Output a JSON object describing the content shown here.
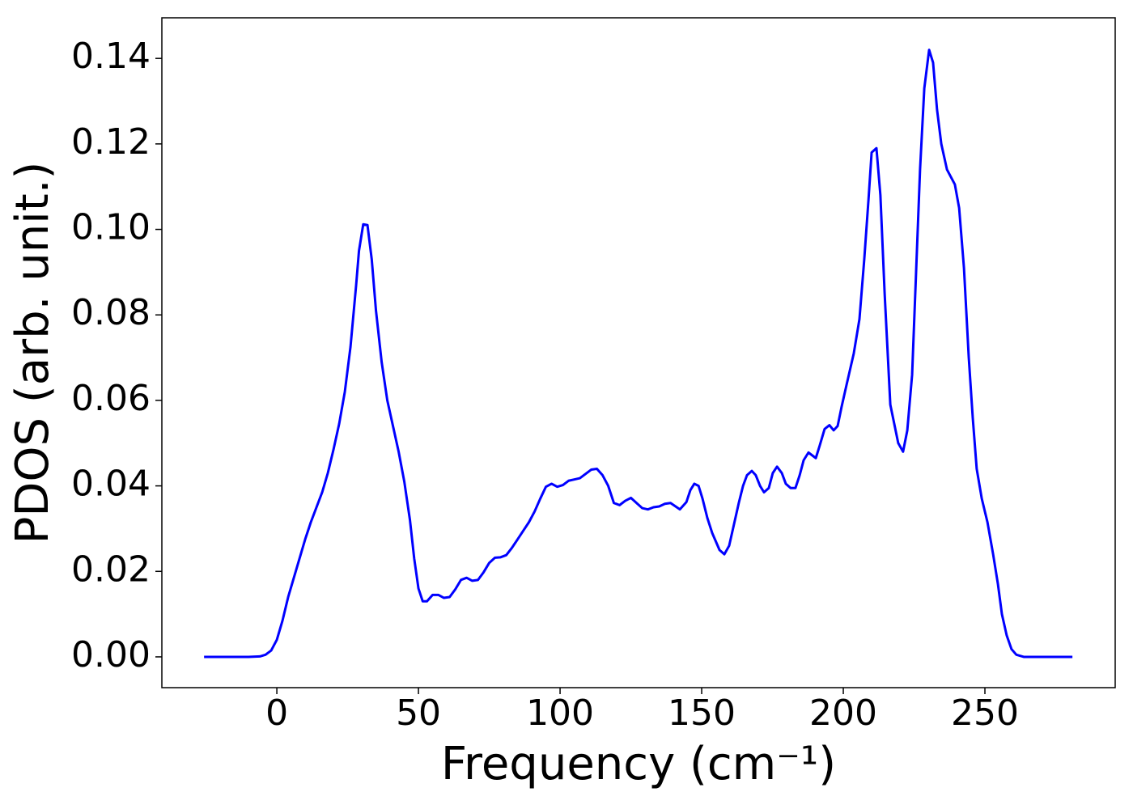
{
  "chart_data": {
    "type": "line",
    "xlabel": "Frequency (cm⁻¹)",
    "ylabel": "PDOS (arb. unit.)",
    "x": [
      -25.7,
      -20,
      -10,
      -6,
      -4,
      -2,
      0,
      2,
      4,
      6,
      8,
      10,
      12,
      14,
      16,
      18,
      20,
      22,
      24,
      26,
      28,
      29,
      30.5,
      32,
      33.5,
      35,
      37,
      39,
      41,
      43,
      45,
      47,
      48.5,
      50,
      51.5,
      53,
      55,
      57,
      59,
      61,
      63,
      65,
      67,
      69,
      71,
      73,
      75,
      77,
      79,
      81,
      83,
      85,
      87,
      89,
      91,
      93,
      95,
      97,
      99,
      101,
      103,
      105,
      107,
      109,
      111,
      113,
      115,
      117,
      119,
      121,
      123,
      125,
      127,
      129,
      131,
      133,
      135,
      137,
      139,
      142.3,
      144.6,
      146,
      147.4,
      148.9,
      150.3,
      152,
      153.7,
      156.3,
      158,
      159.7,
      161.4,
      163.1,
      164.6,
      166,
      167.7,
      169.1,
      170.6,
      172,
      173.7,
      175.1,
      176.6,
      178.3,
      179.7,
      181.4,
      183.1,
      184.6,
      186,
      187.7,
      190.3,
      191.7,
      193.4,
      195.1,
      196.6,
      198,
      199.4,
      201.1,
      203.7,
      205.7,
      207.4,
      208.9,
      210,
      211.7,
      213.1,
      214.6,
      216.6,
      219.4,
      221.1,
      222.6,
      224.3,
      225.7,
      227.1,
      228.6,
      230.3,
      231.7,
      233.1,
      234.6,
      236.6,
      239.4,
      240.9,
      242.6,
      244.3,
      245.7,
      247.1,
      248.9,
      250.9,
      252.9,
      254.6,
      256,
      257.7,
      259.4,
      261.1,
      263.7,
      280.9
    ],
    "series": [
      {
        "color": "#0000ff",
        "values": [
          0,
          0,
          0,
          0.0001,
          0.0005,
          0.0015,
          0.004,
          0.0085,
          0.014,
          0.0185,
          0.023,
          0.0275,
          0.0315,
          0.035,
          0.0385,
          0.043,
          0.0485,
          0.0545,
          0.062,
          0.0725,
          0.087,
          0.095,
          0.1012,
          0.101,
          0.093,
          0.081,
          0.069,
          0.06,
          0.054,
          0.048,
          0.041,
          0.032,
          0.023,
          0.016,
          0.013,
          0.013,
          0.0145,
          0.0145,
          0.0138,
          0.014,
          0.0158,
          0.018,
          0.0185,
          0.0178,
          0.018,
          0.0198,
          0.022,
          0.0232,
          0.0233,
          0.0238,
          0.0255,
          0.0275,
          0.0295,
          0.0315,
          0.034,
          0.037,
          0.0398,
          0.0405,
          0.0398,
          0.0402,
          0.0412,
          0.0415,
          0.0418,
          0.0428,
          0.0438,
          0.044,
          0.0425,
          0.04,
          0.036,
          0.0355,
          0.0365,
          0.0372,
          0.036,
          0.0348,
          0.0345,
          0.035,
          0.0352,
          0.0358,
          0.036,
          0.0345,
          0.0362,
          0.039,
          0.0405,
          0.04,
          0.037,
          0.0325,
          0.029,
          0.025,
          0.024,
          0.026,
          0.031,
          0.036,
          0.04,
          0.0425,
          0.0435,
          0.0425,
          0.04,
          0.0385,
          0.0395,
          0.043,
          0.0445,
          0.043,
          0.0405,
          0.0395,
          0.0395,
          0.0425,
          0.046,
          0.0478,
          0.0465,
          0.0495,
          0.0533,
          0.0542,
          0.053,
          0.054,
          0.0585,
          0.0635,
          0.071,
          0.079,
          0.093,
          0.107,
          0.118,
          0.119,
          0.108,
          0.085,
          0.059,
          0.05,
          0.048,
          0.053,
          0.066,
          0.09,
          0.114,
          0.133,
          0.142,
          0.139,
          0.128,
          0.12,
          0.114,
          0.1105,
          0.105,
          0.091,
          0.07,
          0.056,
          0.044,
          0.037,
          0.0315,
          0.024,
          0.017,
          0.01,
          0.005,
          0.0018,
          0.0005,
          0,
          0
        ]
      }
    ],
    "xlim": [
      -40.6,
      296
    ],
    "ylim": [
      -0.0072,
      0.1495
    ],
    "xticks": [
      0,
      50,
      100,
      150,
      200,
      250
    ],
    "yticks": [
      {
        "value": 0,
        "label": "0.00"
      },
      {
        "value": 0.02,
        "label": "0.02"
      },
      {
        "value": 0.04,
        "label": "0.04"
      },
      {
        "value": 0.06,
        "label": "0.06"
      },
      {
        "value": 0.08,
        "label": "0.08"
      },
      {
        "value": 0.1,
        "label": "0.10"
      },
      {
        "value": 0.12,
        "label": "0.12"
      },
      {
        "value": 0.14,
        "label": "0.14"
      }
    ],
    "grid": false
  }
}
